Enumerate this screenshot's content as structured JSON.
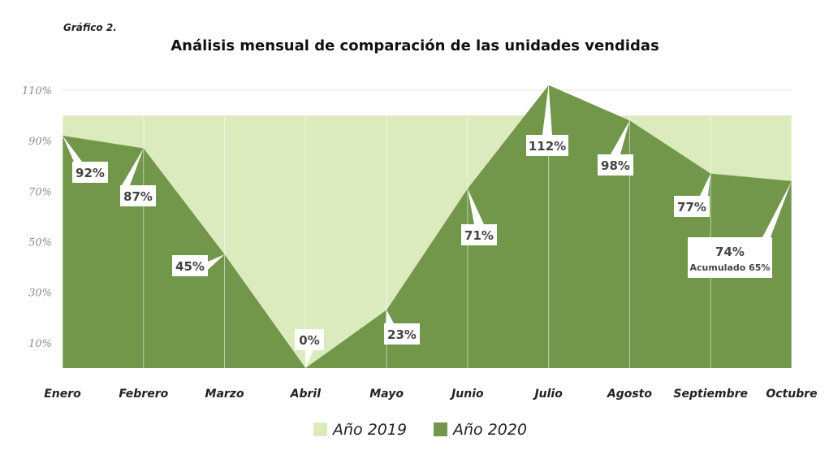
{
  "caption": "Gráfico 2.",
  "chart_data": {
    "type": "area",
    "title": "Análisis mensual de comparación de las unidades vendidas",
    "categories": [
      "Enero",
      "Febrero",
      "Marzo",
      "Abril",
      "Mayo",
      "Junio",
      "Julio",
      "Agosto",
      "Septiembre",
      "Octubre"
    ],
    "series": [
      {
        "name": "Año 2019",
        "color": "#dcebbd",
        "values": [
          100,
          100,
          100,
          100,
          100,
          100,
          100,
          100,
          100,
          100
        ]
      },
      {
        "name": "Año 2020",
        "color": "#72974a",
        "values": [
          92,
          87,
          45,
          0,
          23,
          71,
          112,
          98,
          77,
          74
        ]
      }
    ],
    "data_labels": [
      "92%",
      "87%",
      "45%",
      "0%",
      "23%",
      "71%",
      "112%",
      "98%",
      "77%",
      "74%"
    ],
    "extra_label": "Acumulado 65%",
    "yticks": [
      "10%",
      "30%",
      "50%",
      "70%",
      "90%",
      "110%"
    ],
    "ytick_values": [
      10,
      30,
      50,
      70,
      90,
      110
    ],
    "ylim": [
      0,
      112
    ],
    "grid": true,
    "legend_position": "bottom"
  }
}
